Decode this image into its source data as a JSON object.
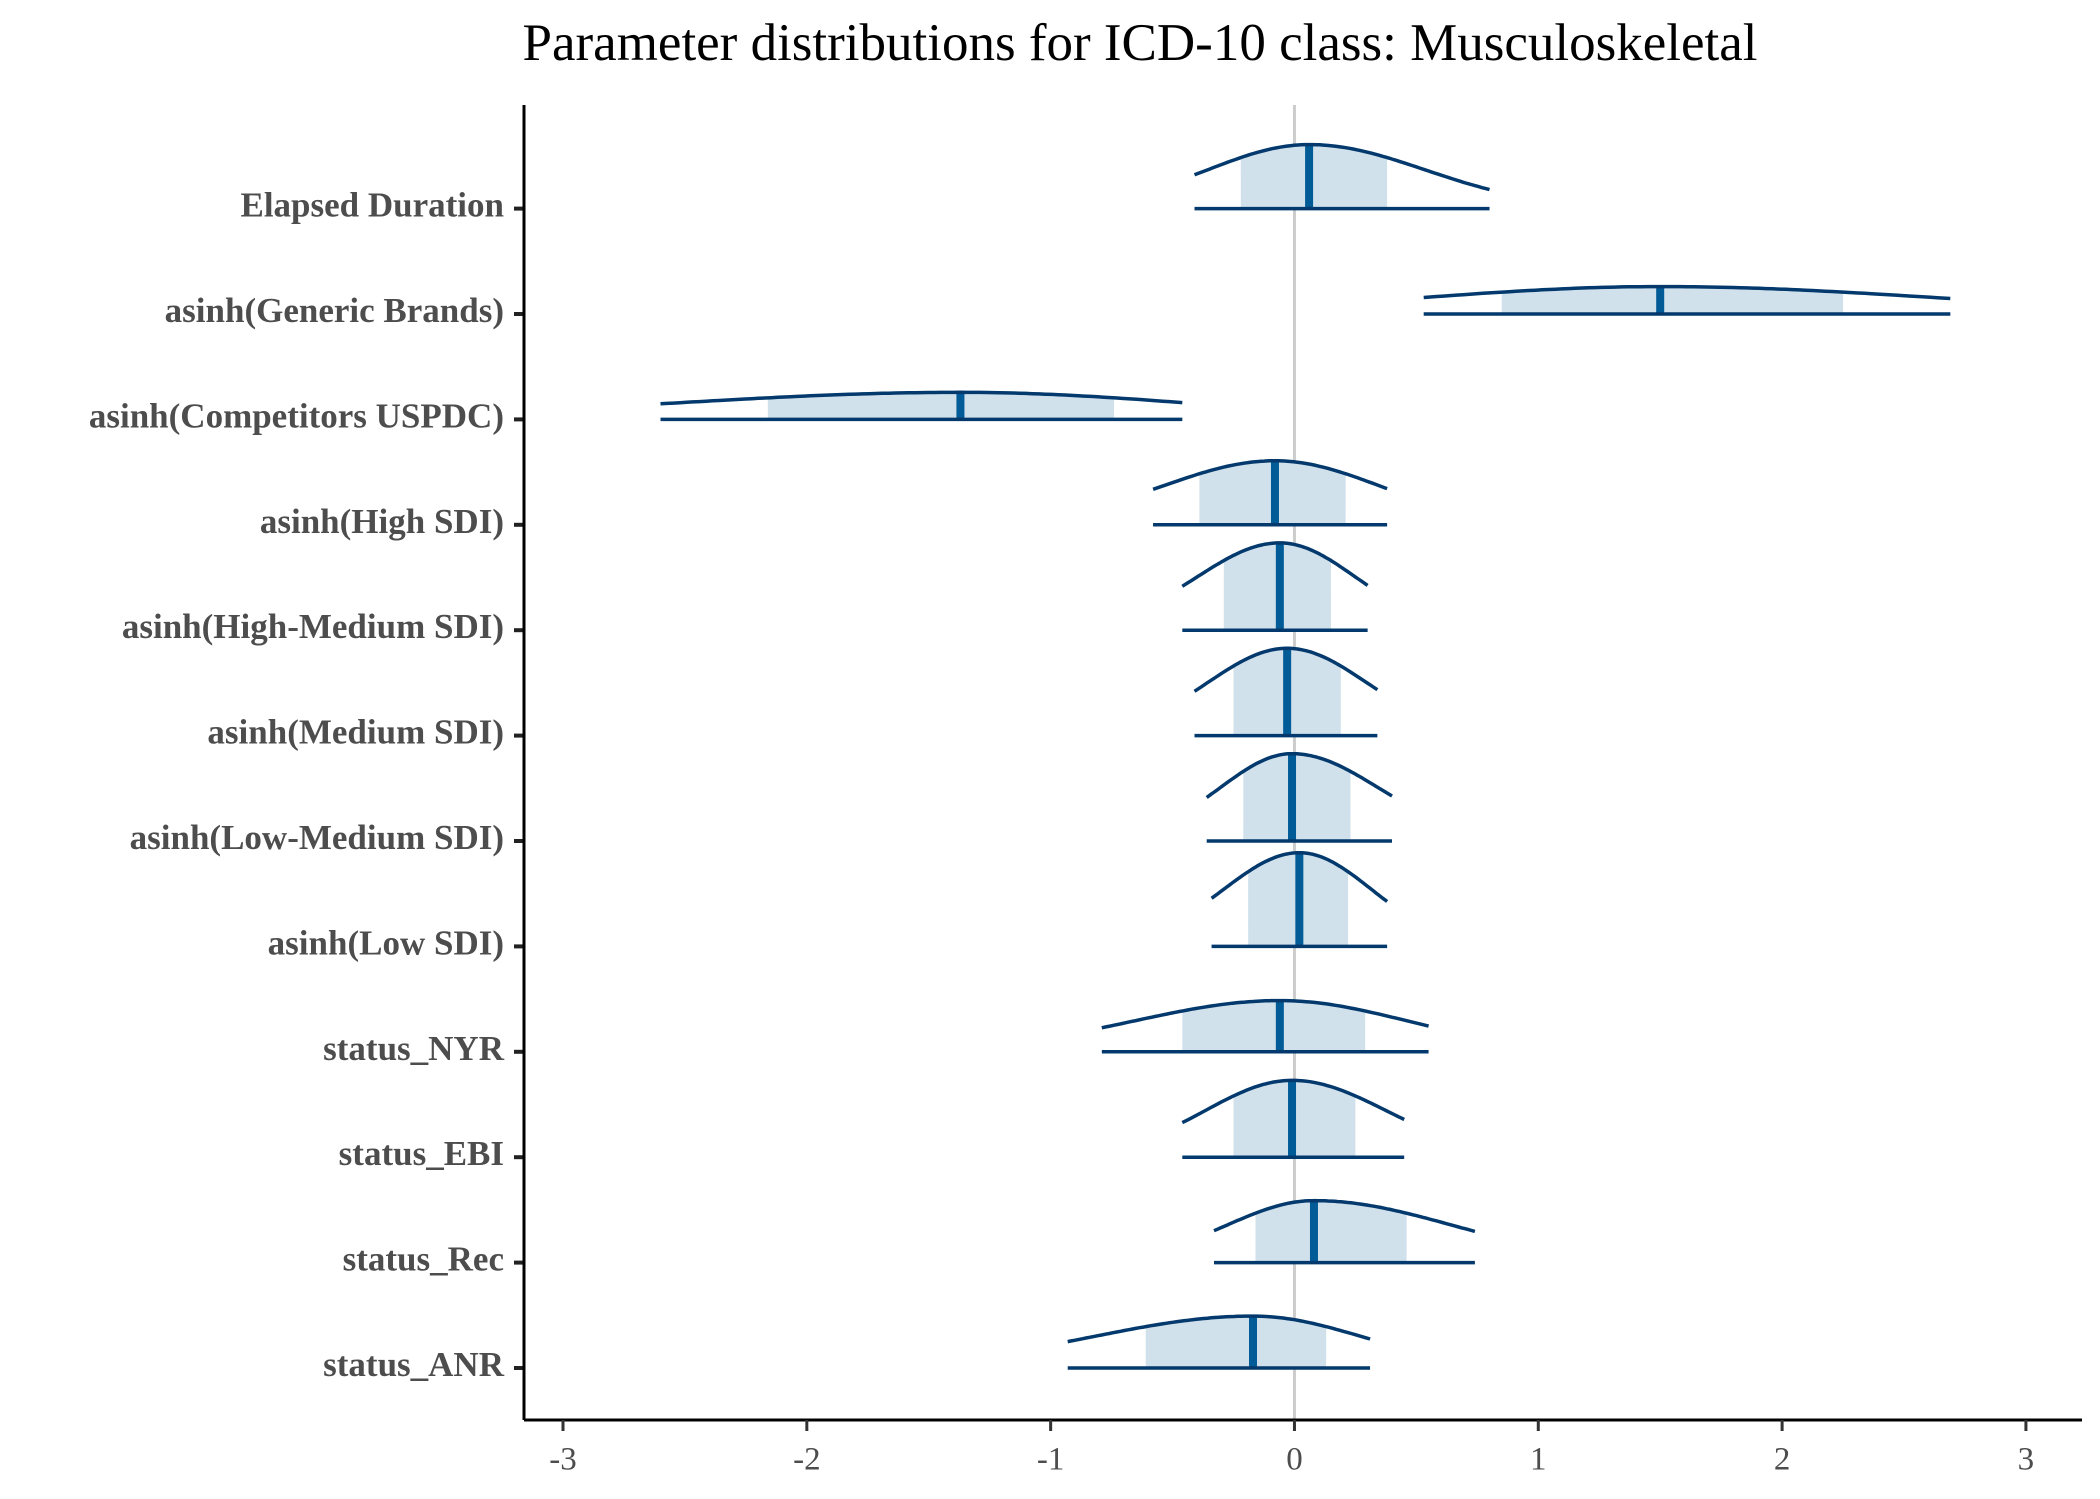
{
  "chart_data": {
    "type": "area_ridges",
    "title": "Parameter distributions for ICD-10 class: Musculoskeletal",
    "xlim": [
      -3.16,
      3.23
    ],
    "xticks": [
      -3,
      -2,
      -1,
      0,
      1,
      2,
      3
    ],
    "reference_line": 0,
    "fill_color": "#d1e1ec",
    "line_color": "#03396c",
    "median_color": "#005b96",
    "reference_color": "#cccccc",
    "parameters": [
      {
        "name": "Elapsed Duration",
        "low": -0.41,
        "inner_low": -0.22,
        "median": 0.06,
        "inner_high": 0.38,
        "high": 0.8
      },
      {
        "name": "asinh(Generic Brands)",
        "low": 0.53,
        "inner_low": 0.85,
        "median": 1.5,
        "inner_high": 2.25,
        "high": 2.69
      },
      {
        "name": "asinh(Competitors USPDC)",
        "low": -2.6,
        "inner_low": -2.16,
        "median": -1.37,
        "inner_high": -0.74,
        "high": -0.46
      },
      {
        "name": "asinh(High SDI)",
        "low": -0.58,
        "inner_low": -0.39,
        "median": -0.08,
        "inner_high": 0.21,
        "high": 0.38
      },
      {
        "name": "asinh(High-Medium SDI)",
        "low": -0.46,
        "inner_low": -0.29,
        "median": -0.06,
        "inner_high": 0.15,
        "high": 0.3
      },
      {
        "name": "asinh(Medium SDI)",
        "low": -0.41,
        "inner_low": -0.25,
        "median": -0.03,
        "inner_high": 0.19,
        "high": 0.34
      },
      {
        "name": "asinh(Low-Medium SDI)",
        "low": -0.36,
        "inner_low": -0.21,
        "median": -0.01,
        "inner_high": 0.23,
        "high": 0.4
      },
      {
        "name": "asinh(Low SDI)",
        "low": -0.34,
        "inner_low": -0.19,
        "median": 0.02,
        "inner_high": 0.22,
        "high": 0.38
      },
      {
        "name": "status_NYR",
        "low": -0.79,
        "inner_low": -0.46,
        "median": -0.06,
        "inner_high": 0.29,
        "high": 0.55
      },
      {
        "name": "status_EBI",
        "low": -0.46,
        "inner_low": -0.25,
        "median": -0.01,
        "inner_high": 0.25,
        "high": 0.45
      },
      {
        "name": "status_Rec",
        "low": -0.33,
        "inner_low": -0.16,
        "median": 0.08,
        "inner_high": 0.46,
        "high": 0.74
      },
      {
        "name": "status_ANR",
        "low": -0.93,
        "inner_low": -0.61,
        "median": -0.17,
        "inner_high": 0.13,
        "high": 0.31
      }
    ]
  }
}
